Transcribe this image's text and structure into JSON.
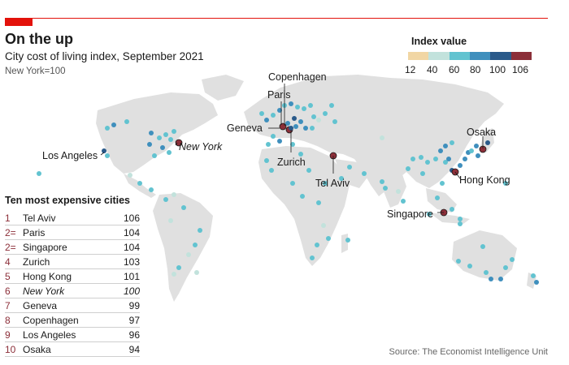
{
  "header": {
    "title": "On the up",
    "subtitle": "City cost of living index, September 2021",
    "note": "New York=100"
  },
  "legend": {
    "title": "Index value",
    "ticks": [
      "12",
      "40",
      "60",
      "80",
      "100",
      "106"
    ],
    "colors": [
      "#f1d6a4",
      "#c2e2dc",
      "#62c3d0",
      "#3f8fbd",
      "#2a5a8a",
      "#8c2f39"
    ]
  },
  "ranking": {
    "title": "Ten most expensive cities",
    "rows": [
      {
        "rank": "1",
        "city": "Tel Aviv",
        "value": "106"
      },
      {
        "rank": "2=",
        "city": "Paris",
        "value": "104"
      },
      {
        "rank": "2=",
        "city": "Singapore",
        "value": "104"
      },
      {
        "rank": "4",
        "city": "Zurich",
        "value": "103"
      },
      {
        "rank": "5",
        "city": "Hong Kong",
        "value": "101"
      },
      {
        "rank": "6",
        "city": "New York",
        "value": "100"
      },
      {
        "rank": "7",
        "city": "Geneva",
        "value": "99"
      },
      {
        "rank": "8",
        "city": "Copenhagen",
        "value": "97"
      },
      {
        "rank": "9",
        "city": "Los Angeles",
        "value": "96"
      },
      {
        "rank": "10",
        "city": "Osaka",
        "value": "94"
      }
    ]
  },
  "map_labels": [
    {
      "name": "Copenhagen",
      "italic": false
    },
    {
      "name": "Paris",
      "italic": false
    },
    {
      "name": "Geneva",
      "italic": false
    },
    {
      "name": "Zurich",
      "italic": false
    },
    {
      "name": "Tel Aviv",
      "italic": false
    },
    {
      "name": "Osaka",
      "italic": false
    },
    {
      "name": "Hong Kong",
      "italic": false
    },
    {
      "name": "Singapore",
      "italic": false
    },
    {
      "name": "Los Angeles",
      "italic": false
    },
    {
      "name": "New York",
      "italic": true
    }
  ],
  "source": "Source: The Economist Intelligence Unit"
}
